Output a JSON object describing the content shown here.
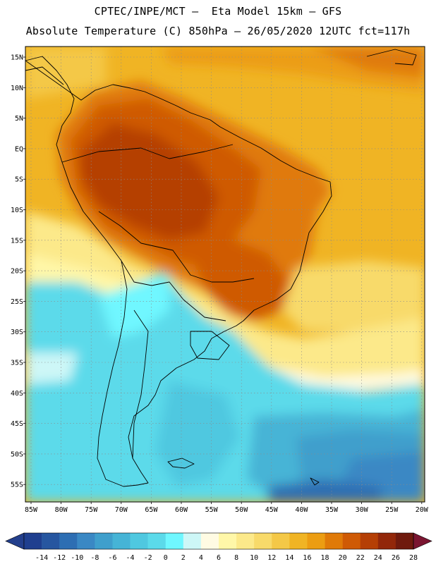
{
  "header": {
    "line1": "CPTEC/INPE/MCT –  Eta Model 15km – GFS",
    "line2": "Absolute Temperature (C) 850hPa – 26/05/2020 12UTC fct=117h"
  },
  "axes": {
    "lat_labels": [
      "15N",
      "10N",
      "5N",
      "EQ",
      "5S",
      "10S",
      "15S",
      "20S",
      "25S",
      "30S",
      "35S",
      "40S",
      "45S",
      "50S",
      "55S"
    ],
    "lon_labels": [
      "85W",
      "80W",
      "75W",
      "70W",
      "65W",
      "60W",
      "55W",
      "50W",
      "45W",
      "40W",
      "35W",
      "30W",
      "25W",
      "20W"
    ]
  },
  "legend": {
    "ticks": [
      "-14",
      "-12",
      "-10",
      "-8",
      "-6",
      "-4",
      "-2",
      "0",
      "2",
      "4",
      "6",
      "8",
      "10",
      "12",
      "14",
      "16",
      "18",
      "20",
      "22",
      "24",
      "26",
      "28"
    ],
    "colors": [
      "#1f3f8f",
      "#2656a0",
      "#2d6eb3",
      "#3a88c4",
      "#3f9fcc",
      "#46b4d6",
      "#4fc8e0",
      "#5bdaea",
      "#6ff7ff",
      "#cdf7f7",
      "#fffbe3",
      "#fff7a8",
      "#fce98a",
      "#f8da6a",
      "#f4c847",
      "#f0b424",
      "#ec9d12",
      "#e07a08",
      "#cf5a05",
      "#b53f05",
      "#92270a",
      "#6f1a0e"
    ],
    "low_color": "#233f8c",
    "high_color": "#7b1531"
  },
  "field_colors": {
    "ocean_north": "#f0b424",
    "amazon": "#b53f05",
    "brazil": "#cf5a05",
    "south_cold": "#5bdaea",
    "deep_south": "#2d6eb3"
  }
}
